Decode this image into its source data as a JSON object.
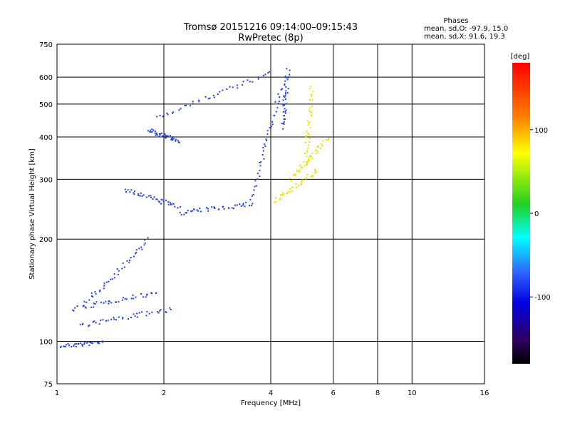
{
  "chart_data": {
    "type": "scatter",
    "title": "Tromsø 20151216 09:14:00–09:15:43",
    "subtitle": "RwPretec (8p)",
    "xlabel": "Frequency [MHz]",
    "ylabel": "Stationary phase Virtual Height [km]",
    "x_scale": "log",
    "y_scale": "log",
    "xlim": [
      1,
      16
    ],
    "ylim": [
      75,
      750
    ],
    "x_ticks": [
      1,
      2,
      4,
      6,
      8,
      10,
      16
    ],
    "y_ticks": [
      75,
      100,
      200,
      300,
      400,
      500,
      600,
      750
    ],
    "grid": true,
    "stats": {
      "heading": "Phases",
      "o_line": "mean, sd,O: -97.9, 15.0",
      "x_line": "mean, sd,X:  91.6, 19.3"
    },
    "colorbar": {
      "label": "[deg]",
      "ticks": [
        "100",
        "0",
        "-100"
      ],
      "tick_values": [
        100,
        0,
        -100
      ],
      "range": [
        -180,
        180
      ]
    },
    "series": [
      {
        "mode": "O",
        "color": "#2040e0",
        "traces": [
          {
            "from": [
              1.0,
              97
            ],
            "to": [
              1.35,
              100
            ]
          },
          {
            "from": [
              1.1,
              125
            ],
            "to": [
              1.9,
              140
            ]
          },
          {
            "from": [
              1.15,
              112
            ],
            "to": [
              2.1,
              125
            ]
          },
          {
            "from": [
              1.2,
              130
            ],
            "to": [
              1.8,
              200
            ]
          },
          {
            "from": [
              1.55,
              280
            ],
            "to": [
              2.2,
              250
            ]
          },
          {
            "from": [
              2.2,
              240
            ],
            "to": [
              3.5,
              255
            ]
          },
          {
            "from": [
              3.5,
              258
            ],
            "to": [
              4.25,
              560
            ]
          },
          {
            "from": [
              4.3,
              430
            ],
            "to": [
              4.45,
              630
            ]
          },
          {
            "from": [
              1.8,
              420
            ],
            "to": [
              2.2,
              390
            ]
          },
          {
            "from": [
              1.9,
              460
            ],
            "to": [
              4.0,
              620
            ]
          }
        ]
      },
      {
        "mode": "X",
        "color": "#f0e000",
        "traces": [
          {
            "from": [
              4.1,
              260
            ],
            "to": [
              5.4,
              320
            ]
          },
          {
            "from": [
              5.0,
              330
            ],
            "to": [
              5.2,
              560
            ]
          },
          {
            "from": [
              4.5,
              300
            ],
            "to": [
              5.8,
              400
            ]
          }
        ]
      }
    ]
  }
}
